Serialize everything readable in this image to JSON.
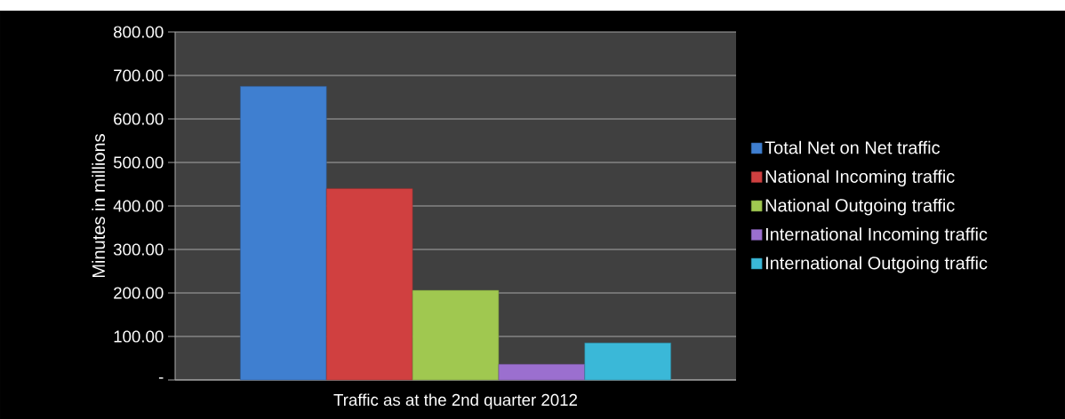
{
  "chart_data": {
    "type": "bar",
    "ylabel": "Minutes  in millions",
    "categories": [
      "Traffic as at the 2nd quarter 2012"
    ],
    "series": [
      {
        "name": "Total Net on Net traffic",
        "color": "#3f7fd0",
        "values": [
          675
        ]
      },
      {
        "name": "National Incoming traffic",
        "color": "#d04040",
        "values": [
          440
        ]
      },
      {
        "name": "National Outgoing traffic",
        "color": "#a0c850",
        "values": [
          206
        ]
      },
      {
        "name": "International Incoming traffic",
        "color": "#9b6fcf",
        "values": [
          36
        ]
      },
      {
        "name": "International Outgoing traffic",
        "color": "#3ab8d8",
        "values": [
          85
        ]
      }
    ],
    "ylim": [
      0,
      800
    ],
    "yticks": [
      {
        "value": 0,
        "label": "-"
      },
      {
        "value": 100,
        "label": "100.00"
      },
      {
        "value": 200,
        "label": "200.00"
      },
      {
        "value": 300,
        "label": "300.00"
      },
      {
        "value": 400,
        "label": "400.00"
      },
      {
        "value": 500,
        "label": "500.00"
      },
      {
        "value": 600,
        "label": "600.00"
      },
      {
        "value": 700,
        "label": "700.00"
      },
      {
        "value": 800,
        "label": "800.00"
      }
    ],
    "grid": "y",
    "legend": "right"
  }
}
